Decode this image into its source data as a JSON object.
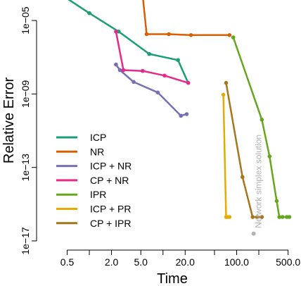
{
  "chart_data": {
    "type": "line",
    "title": "",
    "xlabel": "Time",
    "ylabel": "Relative Error",
    "x_scale": "log",
    "y_scale": "log",
    "xlim": [
      0.25,
      550
    ],
    "ylim": [
      1e-17,
      0.0001
    ],
    "x_ticks": [
      {
        "value": 0.5,
        "label": "0.5"
      },
      {
        "value": 1,
        "label": ""
      },
      {
        "value": 2,
        "label": "2.0"
      },
      {
        "value": 5,
        "label": "5.0"
      },
      {
        "value": 10,
        "label": ""
      },
      {
        "value": 20,
        "label": "20.0"
      },
      {
        "value": 50,
        "label": ""
      },
      {
        "value": 100,
        "label": "100.0"
      },
      {
        "value": 200,
        "label": ""
      },
      {
        "value": 500,
        "label": "500.0"
      }
    ],
    "y_ticks": [
      {
        "value": 1e-05,
        "label": "1e−05"
      },
      {
        "value": 1e-09,
        "label": "1e−09"
      },
      {
        "value": 1e-13,
        "label": "1e−13"
      },
      {
        "value": 1e-17,
        "label": "1e−17"
      }
    ],
    "grid": false,
    "legend_position": "bottom-left",
    "series": [
      {
        "name": "ICP",
        "color": "#1b9e77",
        "points": [
          [
            0.35,
            0.0004
          ],
          [
            1.0,
            2.5e-05
          ],
          [
            2.5,
            2.5e-06
          ],
          [
            6.5,
            1.5e-07
          ],
          [
            16,
            7e-08
          ],
          [
            22,
            4e-09
          ]
        ]
      },
      {
        "name": "NR",
        "color": "#d95f02",
        "points": [
          [
            5.2,
            0.0005
          ],
          [
            6.0,
            1.8e-06
          ],
          [
            12,
            1.8e-06
          ],
          [
            24,
            1.6e-06
          ],
          [
            80,
            1.6e-06
          ]
        ]
      },
      {
        "name": "ICP + NR",
        "color": "#7570b3",
        "points": [
          [
            2.3,
            4e-08
          ],
          [
            2.6,
            2e-08
          ],
          [
            4.0,
            4.5e-09
          ],
          [
            8.5,
            1.2e-09
          ],
          [
            17.5,
            6.5e-11
          ],
          [
            21,
            8e-11
          ]
        ]
      },
      {
        "name": "CP + NR",
        "color": "#e7298a",
        "points": [
          [
            2.3,
            2.5e-06
          ],
          [
            2.9,
            2e-08
          ],
          [
            5.3,
            1.8e-08
          ],
          [
            10.5,
            1e-08
          ],
          [
            22,
            4e-09
          ]
        ]
      },
      {
        "name": "IPR",
        "color": "#66a61e",
        "points": [
          [
            90,
            1.2e-06
          ],
          [
            220,
            4e-11
          ],
          [
            280,
            4e-13
          ],
          [
            350,
            1.5e-15
          ],
          [
            380,
            2e-16
          ],
          [
            420,
            2e-16
          ],
          [
            480,
            2e-16
          ],
          [
            520,
            2e-16
          ]
        ]
      },
      {
        "name": "ICP + PR",
        "color": "#e6ab02",
        "points": [
          [
            66,
            9e-10
          ],
          [
            72,
            2e-16
          ],
          [
            75,
            2e-16
          ],
          [
            80,
            2e-16
          ]
        ]
      },
      {
        "name": "CP + IPR",
        "color": "#a6761d",
        "points": [
          [
            72,
            4e-09
          ],
          [
            120,
            3e-14
          ],
          [
            165,
            2e-16
          ],
          [
            190,
            2e-16
          ],
          [
            220,
            2e-16
          ]
        ]
      }
    ],
    "annotations": [
      {
        "text": "Network simplex solution",
        "x": 170,
        "y": 2.5e-17,
        "color": "#b3b3b3"
      }
    ]
  }
}
